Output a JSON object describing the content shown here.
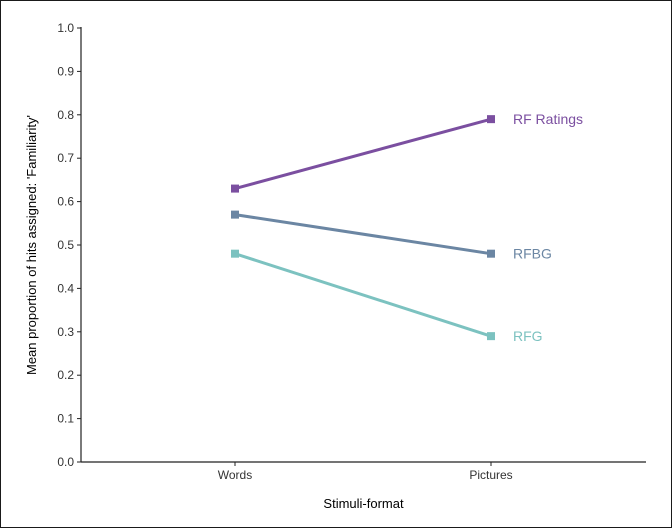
{
  "chart_data": {
    "type": "line",
    "title": "",
    "xlabel": "Stimuli-format",
    "ylabel": "Mean proportion of hits assigned:  'Familiarity'",
    "categories": [
      "Words",
      "Pictures"
    ],
    "ylim": [
      0.0,
      1.0
    ],
    "yticks": [
      "0.0",
      "0.1",
      "0.2",
      "0.3",
      "0.4",
      "0.5",
      "0.6",
      "0.7",
      "0.8",
      "0.9",
      "1.0"
    ],
    "grid": false,
    "legend": "direct labels at right end of lines",
    "series": [
      {
        "name": "RF Ratings",
        "values": [
          0.63,
          0.79
        ],
        "color": "#7b4fa0"
      },
      {
        "name": "RFBG",
        "values": [
          0.57,
          0.48
        ],
        "color": "#6b86a3"
      },
      {
        "name": "RFG",
        "values": [
          0.48,
          0.29
        ],
        "color": "#7cc2c0"
      }
    ]
  }
}
